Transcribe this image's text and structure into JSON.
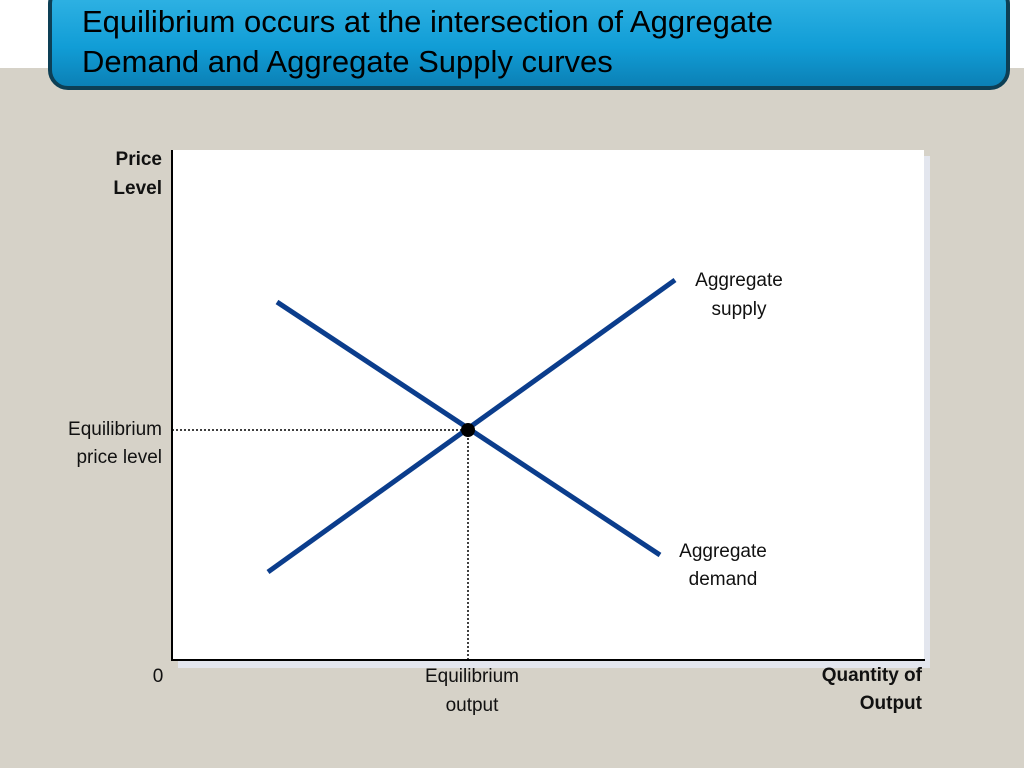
{
  "title": [
    "Equilibrium occurs at the intersection of  Aggregate",
    "Demand and Aggregate Supply curves"
  ],
  "diagram": {
    "y_axis_label": [
      "Price",
      "Level"
    ],
    "x_axis_label": [
      "Quantity of",
      "Output"
    ],
    "origin_label": "0",
    "equilibrium_price_label": [
      "Equilibrium",
      "price level"
    ],
    "equilibrium_output_label": [
      "Equilibrium",
      "output"
    ],
    "supply_label": [
      "Aggregate",
      "supply"
    ],
    "demand_label": [
      "Aggregate",
      "demand"
    ]
  }
}
